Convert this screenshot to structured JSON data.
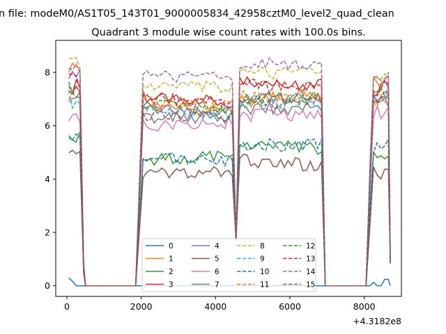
{
  "figure": {
    "suptitle": "n file: modeM0/AS1T05_143T01_9000005834_42958cztM0_level2_quad_clean",
    "title": "Quadrant 3 module wise count rates with 100.0s bins.",
    "x_offset_label": "+4.3182e8"
  },
  "chart_data": {
    "type": "line",
    "title": "Quadrant 3 module wise count rates with 100.0s bins.",
    "xlabel": "",
    "ylabel": "",
    "xlim": [
      -300,
      9000
    ],
    "ylim": [
      -0.4,
      9.2
    ],
    "x_offset": "+4.3182e8",
    "x_ticks": [
      0,
      2000,
      4000,
      6000,
      8000
    ],
    "x_tick_labels": [
      "0",
      "2000",
      "4000",
      "6000",
      "8000"
    ],
    "y_ticks": [
      0,
      2,
      4,
      6,
      8
    ],
    "y_tick_labels": [
      "0",
      "2",
      "4",
      "6",
      "8"
    ],
    "grid": false,
    "legend": {
      "placement": "lower-center",
      "columns": 4
    },
    "segments": {
      "segment_a": {
        "x_start": 50,
        "x_end": 350,
        "step": 100,
        "edge_up": [
          1850,
          2050
        ],
        "edge_down": [
          6850,
          6950
        ]
      },
      "segment_b": {
        "x_start": 2050,
        "x_end": 4450,
        "step": 100
      },
      "dip": {
        "x_values": [
          4350,
          4450,
          4550,
          4650,
          4750
        ]
      },
      "segment_c": {
        "x_start": 4650,
        "x_end": 6850,
        "step": 100
      },
      "segment_d": {
        "x_start": 8150,
        "x_end": 8650,
        "step": 100
      }
    },
    "series": [
      {
        "name": "0",
        "color": "#1f77b4",
        "dash": "solid",
        "levels": [
          0.0,
          0.0,
          0.0,
          0.0,
          0.0
        ]
      },
      {
        "name": "1",
        "color": "#ff7f0e",
        "dash": "solid",
        "levels": [
          8.3,
          6.7,
          6.6,
          6.9,
          7.6
        ]
      },
      {
        "name": "2",
        "color": "#2ca02c",
        "dash": "solid",
        "levels": [
          5.5,
          4.7,
          4.9,
          5.3,
          4.8
        ]
      },
      {
        "name": "3",
        "color": "#d62728",
        "dash": "solid",
        "levels": [
          7.4,
          7.1,
          6.9,
          7.6,
          7.4
        ]
      },
      {
        "name": "4",
        "color": "#9467bd",
        "dash": "solid",
        "levels": [
          7.8,
          6.6,
          6.5,
          7.0,
          7.1
        ]
      },
      {
        "name": "5",
        "color": "#8c564b",
        "dash": "solid",
        "levels": [
          4.9,
          4.2,
          4.3,
          4.7,
          4.2
        ]
      },
      {
        "name": "6",
        "color": "#e377c2",
        "dash": "solid",
        "levels": [
          6.4,
          6.0,
          6.1,
          6.4,
          6.5
        ]
      },
      {
        "name": "7",
        "color": "#7f7f7f",
        "dash": "solid",
        "levels": [
          7.0,
          6.3,
          6.3,
          6.6,
          6.8
        ]
      },
      {
        "name": "8",
        "color": "#bcbd22",
        "dash": "dashed",
        "levels": [
          8.5,
          7.5,
          7.4,
          8.0,
          8.0
        ]
      },
      {
        "name": "9",
        "color": "#17becf",
        "dash": "dashed",
        "levels": [
          7.0,
          6.6,
          6.4,
          6.9,
          6.9
        ]
      },
      {
        "name": "10",
        "color": "#1f77b4",
        "dash": "dashed",
        "levels": [
          5.4,
          4.8,
          4.7,
          5.3,
          5.2
        ]
      },
      {
        "name": "11",
        "color": "#ff7f0e",
        "dash": "dashed",
        "levels": [
          7.2,
          6.9,
          6.8,
          7.1,
          7.0
        ]
      },
      {
        "name": "12",
        "color": "#2ca02c",
        "dash": "dashed",
        "levels": [
          7.3,
          6.8,
          6.6,
          7.0,
          7.2
        ]
      },
      {
        "name": "13",
        "color": "#d62728",
        "dash": "dashed",
        "levels": [
          7.7,
          7.0,
          6.9,
          7.5,
          7.4
        ]
      },
      {
        "name": "14",
        "color": "#9467bd",
        "dash": "dashed",
        "levels": [
          8.2,
          7.9,
          7.8,
          8.4,
          7.9
        ]
      },
      {
        "name": "15",
        "color": "#8c564b",
        "dash": "dashed",
        "levels": [
          7.2,
          6.4,
          6.4,
          6.8,
          7.1
        ]
      }
    ]
  }
}
